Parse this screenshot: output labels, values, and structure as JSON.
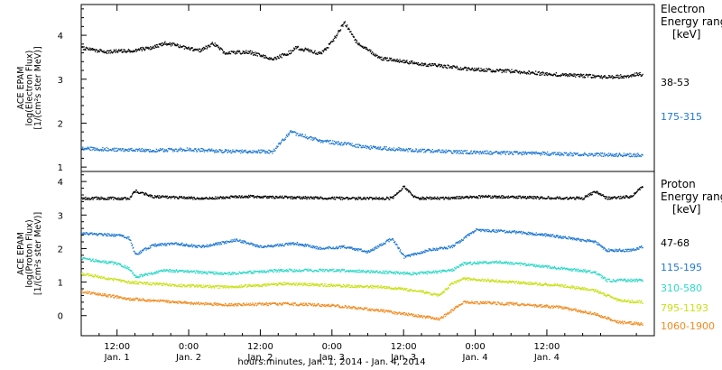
{
  "chart_data": [
    {
      "type": "scatter",
      "ylabel_lines": [
        "ACE EPAM",
        "log(Electron Flux)",
        "[1/(cm²s ster MeV)]"
      ],
      "legend_title_lines": [
        "Electron",
        "Energy ranges",
        "[keV]"
      ],
      "ylim": [
        0.9,
        4.7
      ],
      "yticks": [
        "1",
        "2",
        "3",
        "4"
      ],
      "x_range_hours": [
        0,
        96
      ],
      "series": [
        {
          "name": "38-53",
          "color": "#000000",
          "x": [
            0,
            4,
            8,
            12,
            14,
            16,
            20,
            22,
            24,
            28,
            32,
            35,
            36,
            40,
            42,
            44,
            46,
            50,
            54,
            60,
            66,
            72,
            78,
            84,
            88,
            92,
            93,
            94
          ],
          "values": [
            3.72,
            3.62,
            3.65,
            3.72,
            3.82,
            3.76,
            3.65,
            3.82,
            3.6,
            3.62,
            3.45,
            3.62,
            3.72,
            3.58,
            3.85,
            4.3,
            3.85,
            3.48,
            3.4,
            3.3,
            3.22,
            3.18,
            3.12,
            3.08,
            3.05,
            3.07,
            3.12,
            3.1
          ]
        },
        {
          "name": "175-315",
          "color": "#1e78d2",
          "x": [
            0,
            6,
            12,
            18,
            24,
            32,
            35,
            36,
            40,
            48,
            56,
            64,
            72,
            80,
            88,
            94
          ],
          "values": [
            1.42,
            1.4,
            1.38,
            1.4,
            1.36,
            1.35,
            1.8,
            1.75,
            1.6,
            1.45,
            1.38,
            1.34,
            1.32,
            1.3,
            1.28,
            1.27
          ]
        }
      ]
    },
    {
      "type": "scatter",
      "ylabel_lines": [
        "ACE EPAM",
        "log(Proton Flux)",
        "[1/(cm²s ster MeV)]"
      ],
      "legend_title_lines": [
        "Proton",
        "Energy ranges",
        "[keV]"
      ],
      "ylim": [
        -0.6,
        4.3
      ],
      "yticks": [
        "0",
        "1",
        "2",
        "3",
        "4"
      ],
      "xtick_times": [
        "12:00",
        "0:00",
        "12:00",
        "0:00",
        "12:00",
        "0:00",
        "12:00"
      ],
      "xtick_dates": [
        "Jan. 1",
        "Jan. 2",
        "Jan. 2",
        "Jan. 3",
        "Jan. 3",
        "Jan. 4",
        "Jan. 4"
      ],
      "x_range_hours": [
        0,
        96
      ],
      "xlabel": "hours:minutes, Jan.  1, 2014 - Jan.  4, 2014",
      "series": [
        {
          "name": "47-68",
          "color": "#000000",
          "x": [
            0,
            8,
            9,
            12,
            20,
            28,
            36,
            44,
            52,
            54,
            56,
            60,
            68,
            76,
            84,
            86,
            88,
            92,
            94
          ],
          "values": [
            3.5,
            3.5,
            3.72,
            3.55,
            3.5,
            3.55,
            3.52,
            3.5,
            3.5,
            3.85,
            3.5,
            3.5,
            3.55,
            3.52,
            3.5,
            3.7,
            3.5,
            3.55,
            3.85
          ]
        },
        {
          "name": "115-195",
          "color": "#1e78d2",
          "x": [
            0,
            6,
            8,
            9,
            12,
            16,
            20,
            26,
            30,
            36,
            40,
            44,
            48,
            52,
            54,
            58,
            62,
            66,
            72,
            78,
            82,
            86,
            88,
            92,
            94
          ],
          "values": [
            2.45,
            2.4,
            2.3,
            1.82,
            2.1,
            2.15,
            2.05,
            2.25,
            2.05,
            2.15,
            2.0,
            2.05,
            1.9,
            2.3,
            1.75,
            1.95,
            2.05,
            2.55,
            2.5,
            2.4,
            2.3,
            2.2,
            1.95,
            1.95,
            2.05
          ]
        },
        {
          "name": "310-580",
          "color": "#2ed8c8",
          "x": [
            0,
            6,
            8,
            9,
            14,
            24,
            34,
            42,
            50,
            56,
            62,
            64,
            70,
            78,
            86,
            88,
            94
          ],
          "values": [
            1.7,
            1.55,
            1.4,
            1.15,
            1.35,
            1.25,
            1.35,
            1.35,
            1.3,
            1.25,
            1.35,
            1.55,
            1.6,
            1.45,
            1.3,
            1.05,
            1.05
          ]
        },
        {
          "name": "795-1193",
          "color": "#c8e014",
          "x": [
            0,
            8,
            16,
            24,
            34,
            42,
            50,
            56,
            60,
            62,
            64,
            72,
            80,
            86,
            90,
            94
          ],
          "values": [
            1.25,
            1.0,
            0.9,
            0.85,
            0.95,
            0.9,
            0.85,
            0.75,
            0.6,
            0.95,
            1.1,
            1.0,
            0.9,
            0.75,
            0.45,
            0.4
          ]
        },
        {
          "name": "1060-1900",
          "color": "#f08a1e",
          "x": [
            0,
            8,
            16,
            24,
            34,
            42,
            50,
            56,
            60,
            62,
            64,
            72,
            80,
            86,
            90,
            94
          ],
          "values": [
            0.72,
            0.5,
            0.4,
            0.32,
            0.35,
            0.3,
            0.15,
            0.0,
            -0.1,
            0.15,
            0.4,
            0.35,
            0.25,
            0.05,
            -0.2,
            -0.25
          ]
        }
      ]
    }
  ]
}
